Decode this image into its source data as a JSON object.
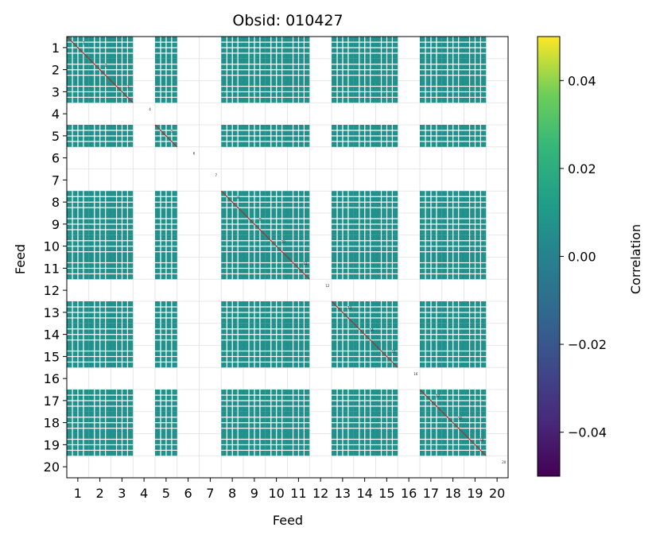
{
  "chart_data": {
    "type": "heatmap",
    "title": "Obsid: 010427",
    "xlabel": "Feed",
    "ylabel": "Feed",
    "feeds": [
      1,
      2,
      3,
      4,
      5,
      6,
      7,
      8,
      9,
      10,
      11,
      12,
      13,
      14,
      15,
      16,
      17,
      18,
      19,
      20
    ],
    "x_tick_labels": [
      "1",
      "2",
      "3",
      "4",
      "5",
      "6",
      "7",
      "8",
      "9",
      "10",
      "11",
      "12",
      "13",
      "14",
      "15",
      "16",
      "17",
      "18",
      "19",
      "20"
    ],
    "y_tick_labels": [
      "1",
      "2",
      "3",
      "4",
      "5",
      "6",
      "7",
      "8",
      "9",
      "10",
      "11",
      "12",
      "13",
      "14",
      "15",
      "16",
      "17",
      "18",
      "19",
      "20"
    ],
    "active_feeds": [
      1,
      2,
      3,
      5,
      8,
      9,
      10,
      11,
      13,
      14,
      15,
      17,
      18,
      19
    ],
    "inactive_feeds": [
      4,
      6,
      7,
      12,
      16,
      20
    ],
    "block_value": 0.0,
    "diagonal_value": "high correlation (above colour scale)",
    "colorbar": {
      "label": "Correlation",
      "vmin": -0.05,
      "vmax": 0.05,
      "ticks": [
        0.04,
        0.02,
        0.0,
        -0.02,
        -0.04
      ],
      "tick_labels": [
        "0.04",
        "0.02",
        "0.00",
        "−0.02",
        "−0.04"
      ],
      "colormap": "viridis"
    },
    "grid": true
  },
  "colors": {
    "block": "#21918c",
    "gap": "#ffffff",
    "grid": "#e0e0e0",
    "diagonal": "#a0302a"
  }
}
